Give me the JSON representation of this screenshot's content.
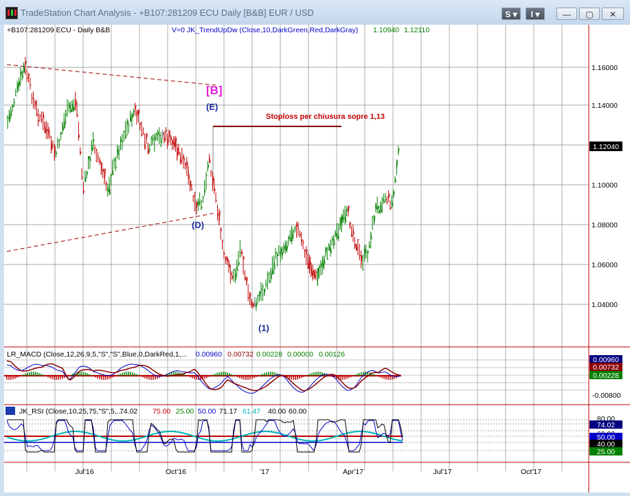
{
  "window": {
    "title": "TradeStation Chart Analysis - +B107:281209 ECU Daily [B&B] EUR / USD",
    "buttons": {
      "s_label": "S",
      "i_label": "I",
      "minimize": "—",
      "maximize": "▢",
      "close": "✕"
    }
  },
  "price_panel": {
    "symbol_label": "+B107:281209 ECU - Daily  B&B",
    "indicator_label": "V=0  JK_TrendUpDw (Close,10,DarkGreen,Red,DarkGray)",
    "indicator_value1": "1.10940",
    "indicator_value2": "1.12110",
    "y_ticks": [
      "1.16000",
      "1.14000",
      "1.12000",
      "1.10000",
      "1.08000",
      "1.06000",
      "1.04000"
    ],
    "current_price": "1.12040",
    "annotations": {
      "b_label": "[B]",
      "e_label": "(E)",
      "d_label": "(D)",
      "one_label": "(1)",
      "stoploss": "Stoploss per chiusura sopre 1,13"
    }
  },
  "macd_panel": {
    "label": "LR_MACD (Close,12,26,9,5,\"S\",\"S\",Blue,0,DarkRed,1,...",
    "values": [
      "0.00960",
      "0.00732",
      "0.00228",
      "0.00000",
      "0.00126"
    ],
    "value_colors": [
      "#0000c8",
      "#8b0000",
      "#008000",
      "#008000",
      "#008000"
    ],
    "badges": [
      {
        "text": "0.00960",
        "bg": "#000080",
        "fg": "#ffffff"
      },
      {
        "text": "0.00732",
        "bg": "#8b0000",
        "fg": "#ffffff"
      },
      {
        "text": "0.00228",
        "bg": "#008000",
        "fg": "#ffffff"
      }
    ],
    "y_ticks": [
      "-0.00800"
    ]
  },
  "rsi_panel": {
    "label": "JK_RSI (Close,10,25,75,\"S\",5,...",
    "values": [
      "74.02",
      "75.00",
      "25.00",
      "50.00",
      "71.17",
      "61.47",
      "40.00",
      "60.00"
    ],
    "value_colors": [
      "#000000",
      "#c80000",
      "#008000",
      "#0000c8",
      "#000000",
      "#00b4b4",
      "#000000",
      "#000000"
    ],
    "badges": [
      {
        "text": "80.00",
        "bg": "#ffffff",
        "fg": "#000000"
      },
      {
        "text": "74.02",
        "bg": "#000080",
        "fg": "#ffffff"
      },
      {
        "text": "60.00",
        "bg": "#ffffff",
        "fg": "#000000"
      },
      {
        "text": "50.00",
        "bg": "#0000c8",
        "fg": "#ffffff"
      },
      {
        "text": "40.00",
        "bg": "#000000",
        "fg": "#ffffff"
      },
      {
        "text": "25.00",
        "bg": "#008000",
        "fg": "#ffffff"
      }
    ]
  },
  "x_axis": {
    "labels": [
      "Jul'16",
      "Oct'16",
      "'17",
      "Apr'17",
      "Jul'17",
      "Oct'17"
    ]
  },
  "colors": {
    "up": "#008000",
    "down": "#c00000",
    "neutral": "#808080",
    "grid": "#8a8a8a",
    "panel_border": "#c00000"
  }
}
